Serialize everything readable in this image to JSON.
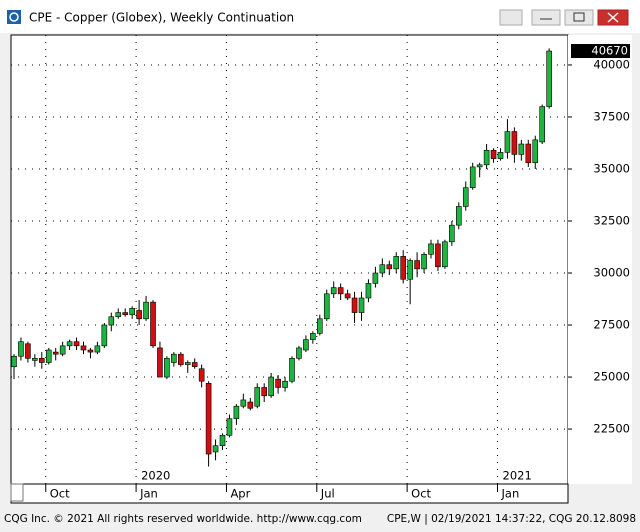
{
  "chart_data": {
    "type": "candlestick",
    "title": "CPE - Copper (Globex), Weekly Continuation",
    "footer_left": "CQG Inc. © 2021 All rights reserved worldwide. http://www.cqg.com",
    "footer_right": "CPE,W | 02/19/2021 14:37:22, CQG 20.12.8098",
    "categories": [
      null,
      null,
      null,
      null,
      null,
      "Oct",
      null,
      null,
      null,
      null,
      null,
      null,
      null,
      null,
      null,
      null,
      null,
      null,
      "Jan",
      null,
      null,
      null,
      null,
      null,
      null,
      null,
      null,
      null,
      null,
      null,
      null,
      "Apr",
      null,
      null,
      null,
      null,
      null,
      null,
      null,
      null,
      null,
      null,
      null,
      null,
      "Jul",
      null,
      null,
      null,
      null,
      null,
      null,
      null,
      null,
      null,
      null,
      null,
      null,
      "Oct",
      null,
      null,
      null,
      null,
      null,
      null,
      null,
      null,
      null,
      null,
      null,
      null,
      "Jan",
      null,
      null,
      null,
      null,
      null,
      null,
      null
    ],
    "year_labels": [
      null,
      null,
      null,
      null,
      null,
      null,
      null,
      null,
      null,
      null,
      null,
      null,
      null,
      null,
      null,
      null,
      null,
      null,
      "2020",
      null,
      null,
      null,
      null,
      null,
      null,
      null,
      null,
      null,
      null,
      null,
      null,
      null,
      null,
      null,
      null,
      null,
      null,
      null,
      null,
      null,
      null,
      null,
      null,
      null,
      null,
      null,
      null,
      null,
      null,
      null,
      null,
      null,
      null,
      null,
      null,
      null,
      null,
      null,
      null,
      null,
      null,
      null,
      null,
      null,
      null,
      null,
      null,
      null,
      null,
      null,
      "2021",
      null,
      null,
      null,
      null,
      null,
      null,
      null
    ],
    "open": [
      25500,
      26000,
      26600,
      25800,
      25900,
      25700,
      26200,
      26100,
      26500,
      26700,
      26500,
      26300,
      26200,
      26500,
      27500,
      27900,
      28100,
      28000,
      28200,
      27800,
      28600,
      26400,
      25000,
      25700,
      26100,
      25600,
      25700,
      25400,
      24700,
      21400,
      21700,
      22200,
      23000,
      23600,
      23800,
      23600,
      24500,
      24100,
      24900,
      24500,
      24800,
      25900,
      26300,
      26800,
      27100,
      27800,
      29000,
      29300,
      29000,
      28800,
      28100,
      28800,
      29500,
      30000,
      30400,
      30200,
      30800,
      29700,
      30600,
      30200,
      30900,
      31400,
      30300,
      31500,
      32300,
      33200,
      34100,
      35100,
      35200,
      35900,
      35500,
      35800,
      36800,
      35700,
      36200,
      35300,
      36300,
      38000
    ],
    "high": [
      26100,
      26900,
      26700,
      26100,
      26200,
      26400,
      26400,
      26700,
      26800,
      26900,
      26700,
      26400,
      26700,
      27600,
      28100,
      28300,
      28300,
      28400,
      28700,
      28900,
      28700,
      26700,
      26000,
      26200,
      26200,
      25800,
      25900,
      25600,
      24800,
      22000,
      22300,
      23200,
      23700,
      24200,
      24000,
      24700,
      24700,
      25200,
      25100,
      25000,
      26000,
      26500,
      27000,
      27200,
      28000,
      29200,
      29600,
      29500,
      29200,
      29100,
      29100,
      29700,
      30300,
      30700,
      30600,
      31000,
      31100,
      30700,
      31000,
      31000,
      31600,
      31600,
      31600,
      32500,
      33400,
      34400,
      35300,
      35300,
      36200,
      36000,
      36000,
      37400,
      37000,
      36400,
      36400,
      36600,
      38100,
      40800
    ],
    "low": [
      24900,
      25800,
      25700,
      25500,
      25400,
      25600,
      25800,
      26000,
      26300,
      26300,
      26100,
      25900,
      26100,
      26400,
      27200,
      27800,
      27900,
      27800,
      27500,
      27700,
      26400,
      25000,
      24900,
      25500,
      25500,
      25200,
      25400,
      24500,
      20700,
      21000,
      21500,
      22100,
      22700,
      23500,
      23400,
      23500,
      23800,
      24000,
      24200,
      24300,
      24700,
      25800,
      26200,
      26600,
      27000,
      27700,
      28800,
      28700,
      28700,
      27600,
      27700,
      28600,
      29300,
      29800,
      29900,
      30000,
      29500,
      28500,
      29800,
      30000,
      30700,
      30100,
      30200,
      31300,
      32100,
      33000,
      34000,
      34600,
      35000,
      35300,
      35400,
      35500,
      35300,
      35400,
      35100,
      35000,
      36200,
      37900
    ],
    "close": [
      26000,
      26700,
      25900,
      25900,
      25700,
      26300,
      26100,
      26500,
      26700,
      26500,
      26300,
      26200,
      26500,
      27500,
      27900,
      28100,
      28000,
      28300,
      27800,
      28600,
      26500,
      25000,
      25900,
      26100,
      25600,
      25700,
      25500,
      24800,
      21300,
      21700,
      22200,
      23000,
      23600,
      23900,
      23500,
      24500,
      24100,
      25000,
      24500,
      24800,
      25900,
      26400,
      26800,
      27100,
      27800,
      29000,
      29300,
      29000,
      28800,
      28100,
      28800,
      29500,
      30000,
      30400,
      30200,
      30800,
      29700,
      30600,
      30200,
      30900,
      31400,
      30300,
      31500,
      32300,
      33200,
      34100,
      35100,
      35200,
      35900,
      35500,
      35800,
      36800,
      35700,
      36200,
      35300,
      36400,
      38000,
      40670
    ],
    "up_color": "#1fb33f",
    "down_color": "#d01010",
    "ylim": [
      19860,
      41440
    ],
    "yticks": [
      22500,
      25000,
      27500,
      30000,
      32500,
      35000,
      37500,
      40000
    ],
    "grid": true
  }
}
